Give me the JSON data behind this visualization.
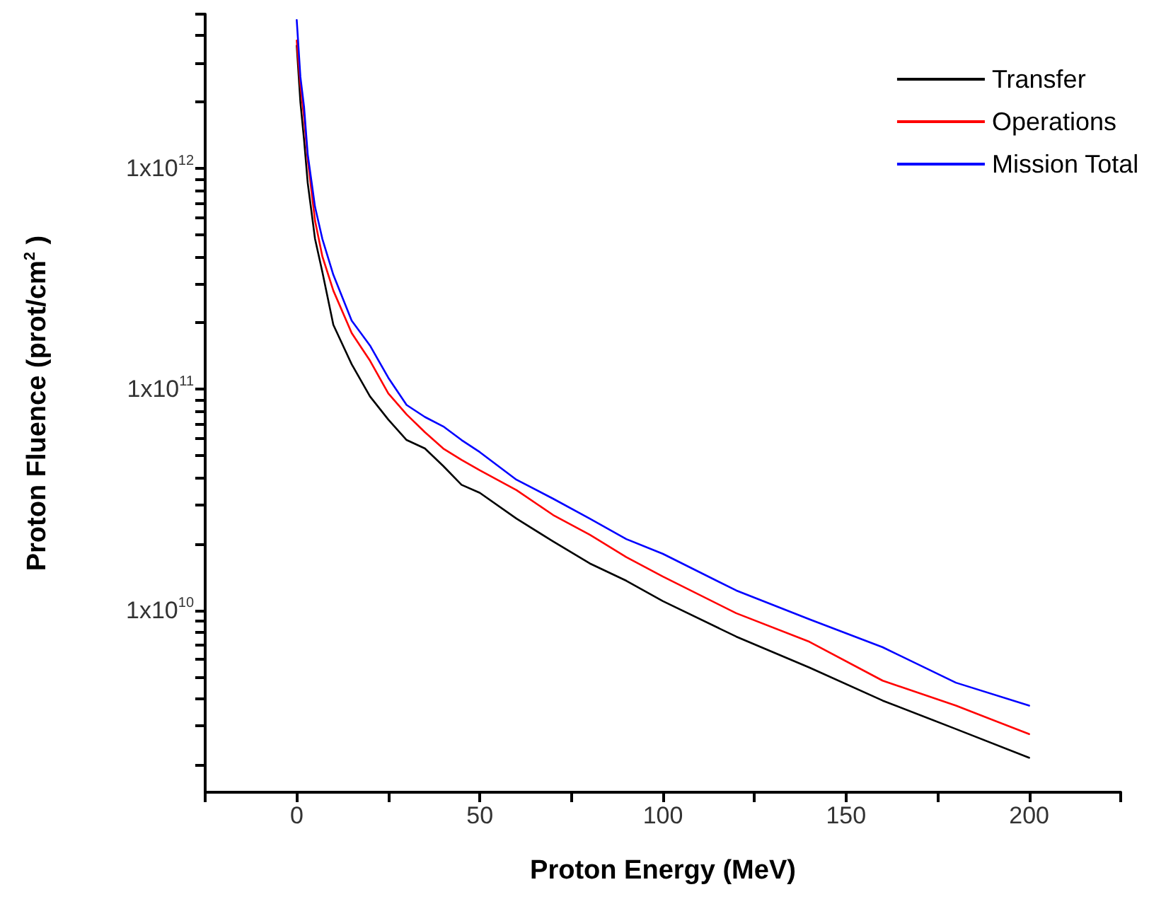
{
  "chart_data": {
    "type": "line",
    "xlabel": "Proton Energy (MeV)",
    "ylabel": "Proton Fluence (prot/cm$^{2}$ )",
    "x": [
      0,
      1,
      2,
      3,
      5,
      7,
      10,
      15,
      20,
      25,
      30,
      35,
      40,
      45,
      50,
      60,
      70,
      80,
      90,
      100,
      120,
      140,
      160,
      180,
      200
    ],
    "series": [
      {
        "name": "Transfer",
        "color": "#000000",
        "values": [
          3600000000000.0,
          2000000000000.0,
          1350000000000.0,
          860000000000.0,
          480000000000.0,
          340000000000.0,
          196000000000.0,
          130000000000.0,
          93000000000.0,
          73000000000.0,
          59000000000.0,
          54000000000.0,
          45000000000.0,
          37000000000.0,
          34000000000.0,
          26000000000.0,
          20500000000.0,
          16300000000.0,
          13600000000.0,
          11000000000.0,
          7600000000.0,
          5500000000.0,
          3900000000.0,
          2900000000.0,
          2150000000.0
        ]
      },
      {
        "name": "Operations",
        "color": "#ff0000",
        "values": [
          3800000000000.0,
          2400000000000.0,
          1700000000000.0,
          1100000000000.0,
          580000000000.0,
          400000000000.0,
          280000000000.0,
          180000000000.0,
          135000000000.0,
          96000000000.0,
          77000000000.0,
          64000000000.0,
          54000000000.0,
          48000000000.0,
          43000000000.0,
          35000000000.0,
          27000000000.0,
          22000000000.0,
          17400000000.0,
          14200000000.0,
          9700000000.0,
          7200000000.0,
          4800000000.0,
          3700000000.0,
          2750000000.0
        ]
      },
      {
        "name": "Mission Total",
        "color": "#0000ff",
        "values": [
          4700000000000.0,
          2600000000000.0,
          1900000000000.0,
          1160000000000.0,
          670000000000.0,
          480000000000.0,
          330000000000.0,
          205000000000.0,
          158000000000.0,
          113000000000.0,
          85000000000.0,
          75000000000.0,
          68000000000.0,
          59000000000.0,
          52000000000.0,
          39000000000.0,
          32000000000.0,
          26000000000.0,
          21000000000.0,
          18000000000.0,
          12300000000.0,
          9100000000.0,
          6800000000.0,
          4700000000.0,
          3700000000.0
        ]
      }
    ],
    "log": "y",
    "xlim": [
      -25,
      225
    ],
    "xticks": [
      {
        "value": -25,
        "label": null
      },
      0,
      {
        "value": 25,
        "label": null
      },
      50,
      {
        "value": 75,
        "label": null
      },
      100,
      {
        "value": 125,
        "label": null
      },
      150,
      {
        "value": 175,
        "label": null
      },
      200,
      {
        "value": 225,
        "label": null
      }
    ],
    "ylim": [
      1500000000.0,
      5000000000000.0
    ],
    "yticks": [
      {
        "value": 2000000000.0,
        "label": null
      },
      {
        "value": 3000000000.0,
        "label": null
      },
      {
        "value": 4000000000.0,
        "label": null
      },
      {
        "value": 5000000000.0,
        "label": null
      },
      {
        "value": 6000000000.0,
        "label": null
      },
      {
        "value": 7000000000.0,
        "label": null
      },
      {
        "value": 8000000000.0,
        "label": null
      },
      {
        "value": 9000000000.0,
        "label": null
      },
      {
        "value": 10000000000.0,
        "label": "1x10$^{10}$"
      },
      {
        "value": 20000000000.0,
        "label": null
      },
      {
        "value": 30000000000.0,
        "label": null
      },
      {
        "value": 40000000000.0,
        "label": null
      },
      {
        "value": 50000000000.0,
        "label": null
      },
      {
        "value": 60000000000.0,
        "label": null
      },
      {
        "value": 70000000000.0,
        "label": null
      },
      {
        "value": 80000000000.0,
        "label": null
      },
      {
        "value": 90000000000.0,
        "label": null
      },
      {
        "value": 100000000000.0,
        "label": "1x10$^{11}$"
      },
      {
        "value": 200000000000.0,
        "label": null
      },
      {
        "value": 300000000000.0,
        "label": null
      },
      {
        "value": 400000000000.0,
        "label": null
      },
      {
        "value": 500000000000.0,
        "label": null
      },
      {
        "value": 600000000000.0,
        "label": null
      },
      {
        "value": 700000000000.0,
        "label": null
      },
      {
        "value": 800000000000.0,
        "label": null
      },
      {
        "value": 900000000000.0,
        "label": null
      },
      {
        "value": 1000000000000.0,
        "label": "1x10$^{12}$"
      },
      {
        "value": 2000000000000.0,
        "label": null
      },
      {
        "value": 3000000000000.0,
        "label": null
      },
      {
        "value": 4000000000000.0,
        "label": null
      },
      {
        "value": 5000000000000.0,
        "label": null
      }
    ],
    "grid": false,
    "legend": "top right",
    "marker": "none",
    "line_style": "solid"
  }
}
